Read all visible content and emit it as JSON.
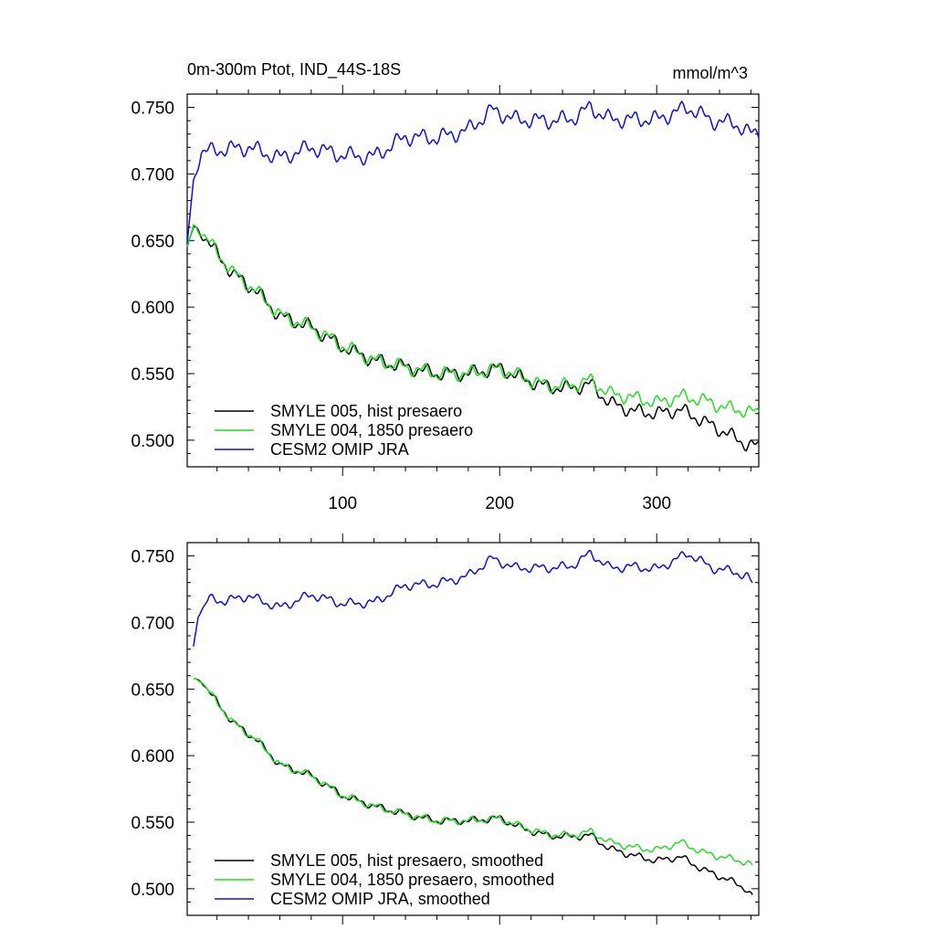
{
  "chart_data": [
    {
      "type": "line",
      "title": "0m-300m Ptot, IND_44S-18S",
      "units": "mmol/m^3",
      "xlim": [
        1,
        365
      ],
      "ylim": [
        0.48,
        0.76
      ],
      "x_ticks": [
        100,
        200,
        300
      ],
      "x_tick_labels": [
        "100",
        "200",
        "300"
      ],
      "y_ticks": [
        0.5,
        0.55,
        0.6,
        0.65,
        0.7,
        0.75
      ],
      "y_tick_labels": [
        "0.500",
        "0.550",
        "0.600",
        "0.650",
        "0.700",
        "0.750"
      ],
      "legend_position": "bottom-left",
      "series": [
        {
          "name": "SMYLE 005, hist presaero",
          "color": "#000000",
          "anchors": [
            [
              1,
              0.645
            ],
            [
              5,
              0.66
            ],
            [
              10,
              0.656
            ],
            [
              20,
              0.64
            ],
            [
              30,
              0.625
            ],
            [
              45,
              0.612
            ],
            [
              60,
              0.593
            ],
            [
              80,
              0.585
            ],
            [
              100,
              0.57
            ],
            [
              120,
              0.56
            ],
            [
              140,
              0.555
            ],
            [
              160,
              0.55
            ],
            [
              180,
              0.55
            ],
            [
              200,
              0.554
            ],
            [
              215,
              0.546
            ],
            [
              230,
              0.54
            ],
            [
              245,
              0.539
            ],
            [
              258,
              0.542
            ],
            [
              270,
              0.528
            ],
            [
              285,
              0.522
            ],
            [
              300,
              0.52
            ],
            [
              315,
              0.523
            ],
            [
              330,
              0.514
            ],
            [
              345,
              0.505
            ],
            [
              357,
              0.497
            ],
            [
              365,
              0.495
            ]
          ],
          "wiggle": 0.006
        },
        {
          "name": "SMYLE 004, 1850 presaero",
          "color": "#22dd22",
          "anchors": [
            [
              1,
              0.645
            ],
            [
              5,
              0.661
            ],
            [
              10,
              0.657
            ],
            [
              20,
              0.641
            ],
            [
              30,
              0.626
            ],
            [
              45,
              0.612
            ],
            [
              60,
              0.594
            ],
            [
              80,
              0.585
            ],
            [
              100,
              0.571
            ],
            [
              120,
              0.56
            ],
            [
              140,
              0.555
            ],
            [
              160,
              0.55
            ],
            [
              180,
              0.55
            ],
            [
              200,
              0.554
            ],
            [
              215,
              0.547
            ],
            [
              230,
              0.541
            ],
            [
              245,
              0.541
            ],
            [
              258,
              0.545
            ],
            [
              270,
              0.535
            ],
            [
              285,
              0.532
            ],
            [
              300,
              0.528
            ],
            [
              315,
              0.533
            ],
            [
              330,
              0.53
            ],
            [
              345,
              0.524
            ],
            [
              357,
              0.522
            ],
            [
              365,
              0.52
            ]
          ],
          "wiggle": 0.006
        },
        {
          "name": "CESM2 OMIP JRA",
          "color": "#1010cc",
          "anchors": [
            [
              1,
              0.648
            ],
            [
              5,
              0.695
            ],
            [
              10,
              0.716
            ],
            [
              20,
              0.718
            ],
            [
              40,
              0.72
            ],
            [
              60,
              0.712
            ],
            [
              80,
              0.72
            ],
            [
              100,
              0.714
            ],
            [
              120,
              0.713
            ],
            [
              140,
              0.728
            ],
            [
              160,
              0.727
            ],
            [
              180,
              0.733
            ],
            [
              195,
              0.748
            ],
            [
              210,
              0.741
            ],
            [
              230,
              0.74
            ],
            [
              245,
              0.741
            ],
            [
              258,
              0.75
            ],
            [
              270,
              0.741
            ],
            [
              285,
              0.741
            ],
            [
              300,
              0.741
            ],
            [
              320,
              0.75
            ],
            [
              335,
              0.74
            ],
            [
              350,
              0.738
            ],
            [
              360,
              0.73
            ],
            [
              365,
              0.731
            ]
          ],
          "wiggle": 0.007
        }
      ]
    },
    {
      "type": "line",
      "title": "",
      "xlim": [
        1,
        365
      ],
      "ylim": [
        0.48,
        0.76
      ],
      "x_ticks": [
        100,
        200,
        300
      ],
      "x_tick_labels": [],
      "y_ticks": [
        0.5,
        0.55,
        0.6,
        0.65,
        0.7,
        0.75
      ],
      "y_tick_labels": [
        "0.500",
        "0.550",
        "0.600",
        "0.650",
        "0.700",
        "0.750"
      ],
      "legend_position": "bottom-left",
      "series": [
        {
          "name": "SMYLE 005, hist presaero, smoothed",
          "color": "#000000",
          "anchors": [
            [
              5,
              0.658
            ],
            [
              10,
              0.656
            ],
            [
              20,
              0.64
            ],
            [
              30,
              0.625
            ],
            [
              45,
              0.612
            ],
            [
              60,
              0.593
            ],
            [
              80,
              0.585
            ],
            [
              100,
              0.57
            ],
            [
              120,
              0.562
            ],
            [
              140,
              0.556
            ],
            [
              160,
              0.551
            ],
            [
              180,
              0.551
            ],
            [
              200,
              0.553
            ],
            [
              215,
              0.545
            ],
            [
              230,
              0.54
            ],
            [
              245,
              0.539
            ],
            [
              258,
              0.54
            ],
            [
              270,
              0.53
            ],
            [
              285,
              0.525
            ],
            [
              300,
              0.521
            ],
            [
              315,
              0.524
            ],
            [
              330,
              0.514
            ],
            [
              345,
              0.507
            ],
            [
              357,
              0.5
            ],
            [
              361,
              0.494
            ]
          ],
          "wiggle": 0.003
        },
        {
          "name": "SMYLE 004, 1850 presaero, smoothed",
          "color": "#22dd22",
          "anchors": [
            [
              5,
              0.658
            ],
            [
              10,
              0.656
            ],
            [
              20,
              0.64
            ],
            [
              30,
              0.625
            ],
            [
              45,
              0.612
            ],
            [
              60,
              0.593
            ],
            [
              80,
              0.585
            ],
            [
              100,
              0.57
            ],
            [
              120,
              0.562
            ],
            [
              140,
              0.556
            ],
            [
              160,
              0.551
            ],
            [
              180,
              0.551
            ],
            [
              200,
              0.553
            ],
            [
              215,
              0.546
            ],
            [
              230,
              0.541
            ],
            [
              245,
              0.54
            ],
            [
              258,
              0.543
            ],
            [
              270,
              0.535
            ],
            [
              285,
              0.531
            ],
            [
              300,
              0.529
            ],
            [
              315,
              0.535
            ],
            [
              330,
              0.527
            ],
            [
              345,
              0.523
            ],
            [
              357,
              0.52
            ],
            [
              361,
              0.517
            ]
          ],
          "wiggle": 0.003
        },
        {
          "name": "CESM2 OMIP JRA, smoothed",
          "color": "#1010cc",
          "anchors": [
            [
              5,
              0.682
            ],
            [
              8,
              0.705
            ],
            [
              15,
              0.718
            ],
            [
              25,
              0.716
            ],
            [
              40,
              0.72
            ],
            [
              60,
              0.711
            ],
            [
              80,
              0.721
            ],
            [
              100,
              0.714
            ],
            [
              120,
              0.715
            ],
            [
              140,
              0.728
            ],
            [
              160,
              0.729
            ],
            [
              180,
              0.735
            ],
            [
              195,
              0.748
            ],
            [
              210,
              0.741
            ],
            [
              230,
              0.741
            ],
            [
              245,
              0.742
            ],
            [
              258,
              0.752
            ],
            [
              270,
              0.741
            ],
            [
              285,
              0.742
            ],
            [
              300,
              0.74
            ],
            [
              320,
              0.752
            ],
            [
              335,
              0.741
            ],
            [
              350,
              0.738
            ],
            [
              358,
              0.734
            ],
            [
              361,
              0.729
            ]
          ],
          "wiggle": 0.004
        }
      ]
    }
  ]
}
